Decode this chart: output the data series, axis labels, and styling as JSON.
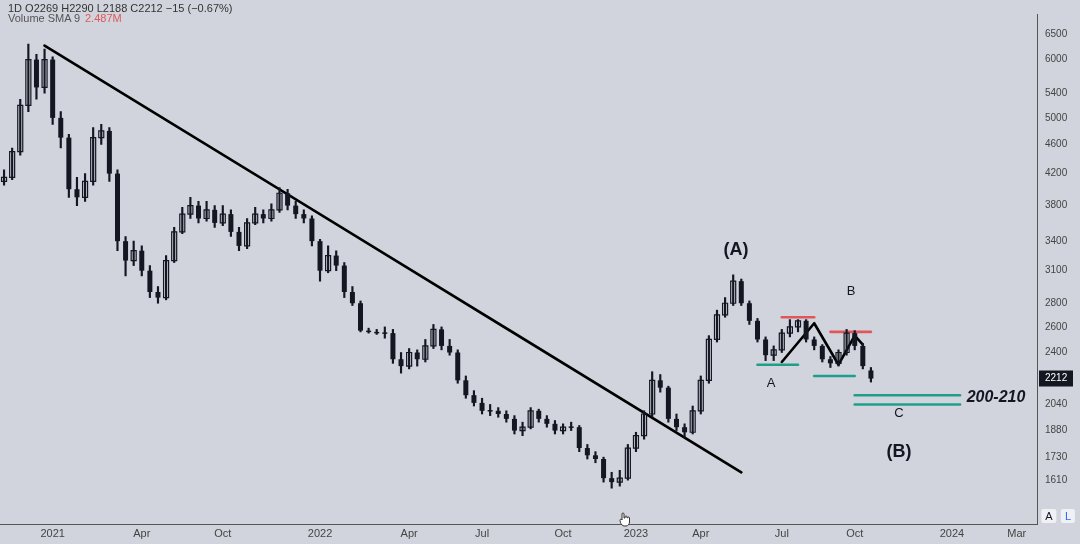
{
  "chart_data": {
    "type": "candlestick",
    "title": "1D O2269 H2290 L2188 C2212 −15 (−0.67%)",
    "color": "#131722",
    "annotations": [
      "Volume SMA 9",
      "2.487M",
      "(A)",
      "B",
      "A",
      "C",
      "(B)",
      "200-210",
      "A",
      "L"
    ],
    "categories": [
      null,
      null,
      null,
      null,
      null,
      null,
      "2021",
      null,
      null,
      null,
      null,
      null,
      null,
      null,
      null,
      null,
      null,
      "Apr",
      null,
      null,
      null,
      null,
      null,
      null,
      null,
      null,
      null,
      "Oct",
      null,
      null,
      null,
      null,
      null,
      null,
      null,
      null,
      null,
      null,
      null,
      "2022",
      null,
      null,
      null,
      null,
      null,
      null,
      null,
      null,
      null,
      null,
      "Apr",
      null,
      null,
      null,
      null,
      null,
      null,
      null,
      null,
      "Jul",
      null,
      null,
      null,
      null,
      null,
      null,
      null,
      null,
      null,
      "Oct",
      null,
      null,
      null,
      null,
      null,
      null,
      null,
      null,
      "2023",
      null,
      null,
      null,
      null,
      null,
      null,
      null,
      "Apr",
      null,
      null,
      null,
      null,
      null,
      null,
      null,
      null,
      null,
      "Jul",
      null,
      null,
      null,
      null,
      null,
      null,
      null,
      null,
      "Oct",
      null,
      null,
      null,
      null,
      null,
      null,
      null,
      null,
      null,
      null,
      null,
      "2024",
      null,
      null,
      null,
      null,
      null,
      null,
      null,
      "Mar",
      null,
      null
    ],
    "ohlc": [
      [
        4100,
        4250,
        4050,
        4150
      ],
      [
        4150,
        4550,
        4120,
        4500
      ],
      [
        4500,
        5300,
        4450,
        5200
      ],
      [
        5200,
        6300,
        5100,
        6000
      ],
      [
        6000,
        6100,
        5300,
        5500
      ],
      [
        5500,
        6200,
        5400,
        6000
      ],
      [
        6000,
        6050,
        4900,
        5000
      ],
      [
        5000,
        5100,
        4550,
        4700
      ],
      [
        4700,
        4750,
        3900,
        4000
      ],
      [
        4000,
        4150,
        3800,
        3900
      ],
      [
        3900,
        4200,
        3850,
        4100
      ],
      [
        4100,
        4850,
        4050,
        4700
      ],
      [
        4700,
        4900,
        4600,
        4800
      ],
      [
        4800,
        4850,
        4100,
        4200
      ],
      [
        4200,
        4250,
        3300,
        3400
      ],
      [
        3400,
        3450,
        3050,
        3200
      ],
      [
        3200,
        3400,
        3150,
        3300
      ],
      [
        3300,
        3350,
        3050,
        3100
      ],
      [
        3100,
        3150,
        2850,
        2900
      ],
      [
        2900,
        2950,
        2800,
        2850
      ],
      [
        2850,
        3250,
        2830,
        3200
      ],
      [
        3200,
        3550,
        3180,
        3500
      ],
      [
        3500,
        3780,
        3480,
        3700
      ],
      [
        3700,
        3900,
        3650,
        3800
      ],
      [
        3800,
        3850,
        3600,
        3650
      ],
      [
        3650,
        3850,
        3620,
        3750
      ],
      [
        3750,
        3800,
        3550,
        3600
      ],
      [
        3600,
        3800,
        3570,
        3700
      ],
      [
        3700,
        3750,
        3450,
        3500
      ],
      [
        3500,
        3550,
        3300,
        3350
      ],
      [
        3350,
        3650,
        3320,
        3600
      ],
      [
        3600,
        3780,
        3580,
        3700
      ],
      [
        3700,
        3750,
        3600,
        3650
      ],
      [
        3650,
        3820,
        3620,
        3750
      ],
      [
        3750,
        4020,
        3720,
        3950
      ],
      [
        3950,
        4000,
        3750,
        3800
      ],
      [
        3800,
        3850,
        3650,
        3700
      ],
      [
        3700,
        3750,
        3600,
        3650
      ],
      [
        3650,
        3680,
        3350,
        3400
      ],
      [
        3400,
        3420,
        3000,
        3100
      ],
      [
        3100,
        3350,
        3080,
        3250
      ],
      [
        3250,
        3300,
        3100,
        3150
      ],
      [
        3150,
        3180,
        2850,
        2900
      ],
      [
        2900,
        2950,
        2780,
        2800
      ],
      [
        2800,
        2820,
        2560,
        2570
      ],
      [
        2570,
        2590,
        2550,
        2560
      ],
      [
        2560,
        2580,
        2540,
        2550
      ],
      [
        2550,
        2600,
        2510,
        2550
      ],
      [
        2550,
        2580,
        2320,
        2350
      ],
      [
        2350,
        2400,
        2250,
        2300
      ],
      [
        2300,
        2430,
        2280,
        2400
      ],
      [
        2400,
        2420,
        2300,
        2350
      ],
      [
        2350,
        2500,
        2330,
        2450
      ],
      [
        2450,
        2620,
        2430,
        2580
      ],
      [
        2580,
        2600,
        2420,
        2450
      ],
      [
        2450,
        2500,
        2380,
        2400
      ],
      [
        2400,
        2420,
        2180,
        2200
      ],
      [
        2200,
        2230,
        2080,
        2100
      ],
      [
        2100,
        2130,
        2030,
        2050
      ],
      [
        2050,
        2080,
        1980,
        2000
      ],
      [
        2000,
        2040,
        1970,
        2000
      ],
      [
        2000,
        2020,
        1960,
        1980
      ],
      [
        1980,
        2000,
        1930,
        1950
      ],
      [
        1950,
        1970,
        1860,
        1880
      ],
      [
        1880,
        1930,
        1850,
        1900
      ],
      [
        1900,
        2020,
        1890,
        2000
      ],
      [
        2000,
        2010,
        1930,
        1950
      ],
      [
        1950,
        1970,
        1900,
        1920
      ],
      [
        1920,
        1940,
        1860,
        1880
      ],
      [
        1880,
        1920,
        1860,
        1900
      ],
      [
        1900,
        1930,
        1880,
        1900
      ],
      [
        1900,
        1910,
        1760,
        1780
      ],
      [
        1780,
        1800,
        1720,
        1740
      ],
      [
        1740,
        1760,
        1700,
        1720
      ],
      [
        1720,
        1730,
        1600,
        1620
      ],
      [
        1620,
        1650,
        1570,
        1600
      ],
      [
        1600,
        1660,
        1580,
        1620
      ],
      [
        1620,
        1800,
        1610,
        1780
      ],
      [
        1780,
        1870,
        1760,
        1850
      ],
      [
        1850,
        2000,
        1830,
        1980
      ],
      [
        1980,
        2260,
        1960,
        2200
      ],
      [
        2200,
        2240,
        2120,
        2150
      ],
      [
        2150,
        2160,
        1930,
        1950
      ],
      [
        1950,
        1980,
        1880,
        1900
      ],
      [
        1900,
        1920,
        1840,
        1870
      ],
      [
        1870,
        2030,
        1860,
        2000
      ],
      [
        2000,
        2230,
        1980,
        2200
      ],
      [
        2200,
        2530,
        2180,
        2500
      ],
      [
        2500,
        2740,
        2480,
        2700
      ],
      [
        2700,
        2850,
        2680,
        2800
      ],
      [
        2800,
        3060,
        2780,
        3000
      ],
      [
        3000,
        3020,
        2780,
        2800
      ],
      [
        2800,
        2820,
        2620,
        2650
      ],
      [
        2650,
        2670,
        2480,
        2500
      ],
      [
        2500,
        2520,
        2340,
        2380
      ],
      [
        2380,
        2450,
        2340,
        2420
      ],
      [
        2420,
        2580,
        2400,
        2550
      ],
      [
        2550,
        2660,
        2520,
        2600
      ],
      [
        2600,
        2660,
        2560,
        2650
      ],
      [
        2650,
        2660,
        2480,
        2500
      ],
      [
        2500,
        2520,
        2420,
        2450
      ],
      [
        2450,
        2460,
        2330,
        2350
      ],
      [
        2350,
        2370,
        2290,
        2320
      ],
      [
        2320,
        2420,
        2300,
        2400
      ],
      [
        2400,
        2580,
        2380,
        2550
      ],
      [
        2550,
        2570,
        2420,
        2450
      ],
      [
        2450,
        2470,
        2280,
        2300
      ],
      [
        2269,
        2290,
        2188,
        2212
      ],
      null,
      null,
      null,
      null,
      null,
      null,
      null,
      null,
      null,
      null,
      null,
      null,
      null,
      null,
      null,
      null,
      null,
      null,
      null,
      null
    ],
    "series": [
      {
        "type": "line",
        "color": "#000000",
        "values": [
          null,
          null,
          null,
          null,
          null,
          6270,
          null,
          null,
          null,
          null,
          null,
          null,
          null,
          null,
          null,
          null,
          null,
          null,
          null,
          null,
          null,
          null,
          null,
          null,
          null,
          null,
          null,
          null,
          null,
          null,
          null,
          null,
          null,
          null,
          null,
          null,
          null,
          null,
          null,
          null,
          null,
          null,
          null,
          null,
          null,
          null,
          null,
          null,
          null,
          null,
          null,
          null,
          null,
          null,
          null,
          null,
          null,
          null,
          null,
          null,
          null,
          null,
          null,
          null,
          null,
          null,
          null,
          null,
          null,
          null,
          null,
          null,
          null,
          null,
          null,
          null,
          null,
          null,
          null,
          null,
          null,
          null,
          null,
          null,
          null,
          null,
          null,
          null,
          null,
          null,
          null,
          1650,
          null,
          null,
          null,
          null,
          null,
          null,
          null,
          null,
          null,
          null,
          null,
          null,
          null,
          null,
          null,
          null,
          null,
          null,
          null,
          null,
          null,
          null,
          null,
          null,
          null,
          null,
          null,
          null,
          null,
          null,
          null,
          null,
          null,
          null,
          null,
          null
        ]
      },
      {
        "type": "line",
        "color": "#e0575b",
        "values": [
          null,
          null,
          null,
          null,
          null,
          null,
          null,
          null,
          null,
          null,
          null,
          null,
          null,
          null,
          null,
          null,
          null,
          null,
          null,
          null,
          null,
          null,
          null,
          null,
          null,
          null,
          null,
          null,
          null,
          null,
          null,
          null,
          null,
          null,
          null,
          null,
          null,
          null,
          null,
          null,
          null,
          null,
          null,
          null,
          null,
          null,
          null,
          null,
          null,
          null,
          null,
          null,
          null,
          null,
          null,
          null,
          null,
          null,
          null,
          null,
          null,
          null,
          null,
          null,
          null,
          null,
          null,
          null,
          null,
          null,
          null,
          null,
          null,
          null,
          null,
          null,
          null,
          null,
          null,
          null,
          null,
          null,
          null,
          null,
          null,
          null,
          null,
          null,
          null,
          null,
          null,
          null,
          null,
          null,
          null,
          null,
          2680,
          2680,
          2680,
          2680,
          2680,
          null,
          null,
          null,
          null,
          null,
          null,
          null,
          null,
          null,
          null,
          null,
          null,
          null,
          null,
          null,
          null,
          null,
          null,
          null,
          null,
          null,
          null,
          null,
          null,
          null,
          null,
          null
        ]
      },
      {
        "type": "line",
        "color": "#e0575b",
        "values": [
          null,
          null,
          null,
          null,
          null,
          null,
          null,
          null,
          null,
          null,
          null,
          null,
          null,
          null,
          null,
          null,
          null,
          null,
          null,
          null,
          null,
          null,
          null,
          null,
          null,
          null,
          null,
          null,
          null,
          null,
          null,
          null,
          null,
          null,
          null,
          null,
          null,
          null,
          null,
          null,
          null,
          null,
          null,
          null,
          null,
          null,
          null,
          null,
          null,
          null,
          null,
          null,
          null,
          null,
          null,
          null,
          null,
          null,
          null,
          null,
          null,
          null,
          null,
          null,
          null,
          null,
          null,
          null,
          null,
          null,
          null,
          null,
          null,
          null,
          null,
          null,
          null,
          null,
          null,
          null,
          null,
          null,
          null,
          null,
          null,
          null,
          null,
          null,
          null,
          null,
          null,
          null,
          null,
          null,
          null,
          null,
          null,
          null,
          null,
          null,
          null,
          null,
          2560,
          2560,
          2560,
          2560,
          2560,
          2560,
          null,
          null,
          null,
          null,
          null,
          null,
          null,
          null,
          null,
          null,
          null,
          null,
          null,
          null,
          null,
          null,
          null,
          null,
          null,
          null
        ]
      },
      {
        "type": "line",
        "color": "#1f9e8a",
        "values": [
          null,
          null,
          null,
          null,
          null,
          null,
          null,
          null,
          null,
          null,
          null,
          null,
          null,
          null,
          null,
          null,
          null,
          null,
          null,
          null,
          null,
          null,
          null,
          null,
          null,
          null,
          null,
          null,
          null,
          null,
          null,
          null,
          null,
          null,
          null,
          null,
          null,
          null,
          null,
          null,
          null,
          null,
          null,
          null,
          null,
          null,
          null,
          null,
          null,
          null,
          null,
          null,
          null,
          null,
          null,
          null,
          null,
          null,
          null,
          null,
          null,
          null,
          null,
          null,
          null,
          null,
          null,
          null,
          null,
          null,
          null,
          null,
          null,
          null,
          null,
          null,
          null,
          null,
          null,
          null,
          null,
          null,
          null,
          null,
          null,
          null,
          null,
          null,
          null,
          null,
          null,
          null,
          null,
          2310,
          2310,
          2310,
          2310,
          2310,
          2310,
          null,
          null,
          null,
          null,
          null,
          null,
          null,
          null,
          null,
          null,
          null,
          null,
          null,
          null,
          null,
          null,
          null,
          null,
          null,
          null,
          null,
          null,
          null,
          null,
          null,
          null,
          null,
          null,
          null
        ]
      },
      {
        "type": "line",
        "color": "#1f9e8a",
        "values": [
          null,
          null,
          null,
          null,
          null,
          null,
          null,
          null,
          null,
          null,
          null,
          null,
          null,
          null,
          null,
          null,
          null,
          null,
          null,
          null,
          null,
          null,
          null,
          null,
          null,
          null,
          null,
          null,
          null,
          null,
          null,
          null,
          null,
          null,
          null,
          null,
          null,
          null,
          null,
          null,
          null,
          null,
          null,
          null,
          null,
          null,
          null,
          null,
          null,
          null,
          null,
          null,
          null,
          null,
          null,
          null,
          null,
          null,
          null,
          null,
          null,
          null,
          null,
          null,
          null,
          null,
          null,
          null,
          null,
          null,
          null,
          null,
          null,
          null,
          null,
          null,
          null,
          null,
          null,
          null,
          null,
          null,
          null,
          null,
          null,
          null,
          null,
          null,
          null,
          null,
          null,
          null,
          null,
          null,
          null,
          null,
          null,
          null,
          null,
          null,
          2230,
          2230,
          2230,
          2230,
          2230,
          2230,
          null,
          null,
          null,
          null,
          null,
          null,
          null,
          null,
          null,
          null,
          null,
          null,
          null,
          null,
          null,
          null,
          null,
          null,
          null,
          null,
          null,
          null
        ]
      },
      {
        "type": "line",
        "color": "#1f9e8a",
        "values": [
          null,
          null,
          null,
          null,
          null,
          null,
          null,
          null,
          null,
          null,
          null,
          null,
          null,
          null,
          null,
          null,
          null,
          null,
          null,
          null,
          null,
          null,
          null,
          null,
          null,
          null,
          null,
          null,
          null,
          null,
          null,
          null,
          null,
          null,
          null,
          null,
          null,
          null,
          null,
          null,
          null,
          null,
          null,
          null,
          null,
          null,
          null,
          null,
          null,
          null,
          null,
          null,
          null,
          null,
          null,
          null,
          null,
          null,
          null,
          null,
          null,
          null,
          null,
          null,
          null,
          null,
          null,
          null,
          null,
          null,
          null,
          null,
          null,
          null,
          null,
          null,
          null,
          null,
          null,
          null,
          null,
          null,
          null,
          null,
          null,
          null,
          null,
          null,
          null,
          null,
          null,
          null,
          null,
          null,
          null,
          null,
          null,
          null,
          null,
          null,
          null,
          null,
          null,
          null,
          null,
          2100,
          2100,
          2100,
          2100,
          2100,
          2100,
          2100,
          2100,
          2100,
          2100,
          2100,
          2100,
          2100,
          2100,
          null,
          null,
          null,
          null,
          null,
          null,
          null,
          null,
          null
        ]
      },
      {
        "type": "line",
        "color": "#1f9e8a",
        "values": [
          null,
          null,
          null,
          null,
          null,
          null,
          null,
          null,
          null,
          null,
          null,
          null,
          null,
          null,
          null,
          null,
          null,
          null,
          null,
          null,
          null,
          null,
          null,
          null,
          null,
          null,
          null,
          null,
          null,
          null,
          null,
          null,
          null,
          null,
          null,
          null,
          null,
          null,
          null,
          null,
          null,
          null,
          null,
          null,
          null,
          null,
          null,
          null,
          null,
          null,
          null,
          null,
          null,
          null,
          null,
          null,
          null,
          null,
          null,
          null,
          null,
          null,
          null,
          null,
          null,
          null,
          null,
          null,
          null,
          null,
          null,
          null,
          null,
          null,
          null,
          null,
          null,
          null,
          null,
          null,
          null,
          null,
          null,
          null,
          null,
          null,
          null,
          null,
          null,
          null,
          null,
          null,
          null,
          null,
          null,
          null,
          null,
          null,
          null,
          null,
          null,
          null,
          null,
          null,
          null,
          2040,
          2040,
          2040,
          2040,
          2040,
          2040,
          2040,
          2040,
          2040,
          2040,
          2040,
          2040,
          2040,
          2040,
          null,
          null,
          null,
          null,
          null,
          null,
          null,
          null,
          null
        ]
      },
      {
        "type": "line",
        "color": "#000000",
        "values": [
          null,
          null,
          null,
          null,
          null,
          null,
          null,
          null,
          null,
          null,
          null,
          null,
          null,
          null,
          null,
          null,
          null,
          null,
          null,
          null,
          null,
          null,
          null,
          null,
          null,
          null,
          null,
          null,
          null,
          null,
          null,
          null,
          null,
          null,
          null,
          null,
          null,
          null,
          null,
          null,
          null,
          null,
          null,
          null,
          null,
          null,
          null,
          null,
          null,
          null,
          null,
          null,
          null,
          null,
          null,
          null,
          null,
          null,
          null,
          null,
          null,
          null,
          null,
          null,
          null,
          null,
          null,
          null,
          null,
          null,
          null,
          null,
          null,
          null,
          null,
          null,
          null,
          null,
          null,
          null,
          null,
          null,
          null,
          null,
          null,
          null,
          null,
          null,
          null,
          null,
          null,
          null,
          null,
          null,
          null,
          null,
          2330,
          null,
          null,
          null,
          2630,
          null,
          null,
          2310,
          null,
          2530,
          2460,
          null,
          null,
          null,
          null,
          null,
          null,
          null,
          null,
          null,
          null,
          null,
          null,
          null,
          null,
          null,
          null,
          null,
          null,
          null,
          null,
          null
        ]
      }
    ],
    "log": true,
    "ylim": [
      1400,
      6920
    ],
    "yticks": [
      1610,
      1730,
      1880,
      2040,
      2212,
      2400,
      2600,
      2800,
      3100,
      3400,
      3800,
      4200,
      4600,
      5000,
      5400,
      6000,
      6500
    ],
    "legend": false,
    "grid": false
  }
}
